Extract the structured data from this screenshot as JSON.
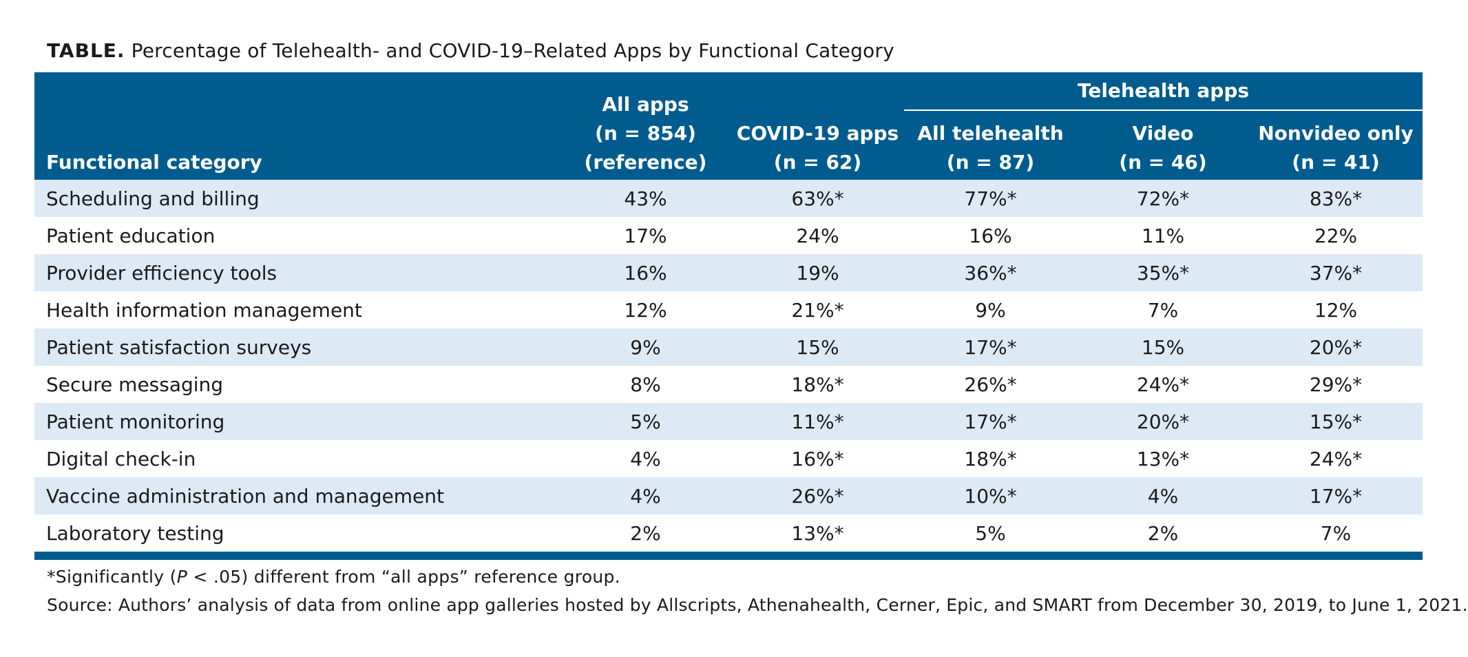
{
  "caption": {
    "label": "TABLE.",
    "text": "Percentage of Telehealth- and COVID-19–Related Apps by Functional Category"
  },
  "header": {
    "functional_category": "Functional category",
    "all_apps": [
      "All apps",
      "(n = 854)",
      "(reference)"
    ],
    "covid_apps": [
      "COVID-19 apps",
      "(n = 62)"
    ],
    "telehealth_group": "Telehealth apps",
    "all_telehealth": [
      "All telehealth",
      "(n = 87)"
    ],
    "video": [
      "Video",
      "(n = 46)"
    ],
    "nonvideo": [
      "Nonvideo only",
      "(n = 41)"
    ]
  },
  "rows": [
    {
      "category": "Scheduling and billing",
      "values": [
        "43%",
        "63%*",
        "77%*",
        "72%*",
        "83%*"
      ]
    },
    {
      "category": "Patient education",
      "values": [
        "17%",
        "24%",
        "16%",
        "11%",
        "22%"
      ]
    },
    {
      "category": "Provider efficiency tools",
      "values": [
        "16%",
        "19%",
        "36%*",
        "35%*",
        "37%*"
      ]
    },
    {
      "category": "Health information management",
      "values": [
        "12%",
        "21%*",
        "9%",
        "7%",
        "12%"
      ]
    },
    {
      "category": "Patient satisfaction surveys",
      "values": [
        "9%",
        "15%",
        "17%*",
        "15%",
        "20%*"
      ]
    },
    {
      "category": "Secure messaging",
      "values": [
        "8%",
        "18%*",
        "26%*",
        "24%*",
        "29%*"
      ]
    },
    {
      "category": "Patient monitoring",
      "values": [
        "5%",
        "11%*",
        "17%*",
        "20%*",
        "15%*"
      ]
    },
    {
      "category": "Digital check-in",
      "values": [
        "4%",
        "16%*",
        "18%*",
        "13%*",
        "24%*"
      ]
    },
    {
      "category": "Vaccine administration and management",
      "values": [
        "4%",
        "26%*",
        "10%*",
        "4%",
        "17%*"
      ]
    },
    {
      "category": "Laboratory testing",
      "values": [
        "2%",
        "13%*",
        "5%",
        "2%",
        "7%"
      ]
    }
  ],
  "footnote": {
    "prefix": "*Significantly (",
    "p": "P",
    "suffix": " < .05) different from “all apps” reference group."
  },
  "source": "Source: Authors’ analysis of data from online app galleries hosted by Allscripts, Athenahealth, Cerner, Epic, and SMART from December 30, 2019, to June 1, 2021.",
  "colors": {
    "header_bg": "#005c8f",
    "stripe_bg": "#dde9f5"
  }
}
